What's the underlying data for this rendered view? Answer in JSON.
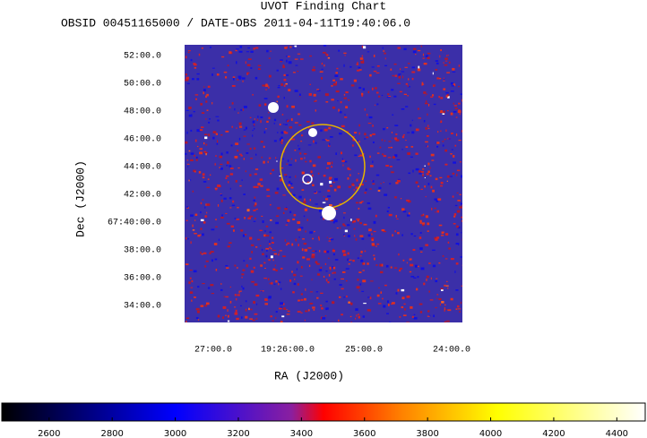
{
  "title": "UVOT Finding Chart",
  "subtitle": "OBSID 00451165000 / DATE-OBS 2011-04-11T19:40:06.0",
  "y_axis": {
    "label": "Dec (J2000)",
    "ticks": [
      "52:00.0",
      "50:00.0",
      "48:00.0",
      "46:00.0",
      "44:00.0",
      "42:00.0",
      "67:40:00.0",
      "38:00.0",
      "36:00.0",
      "34:00.0"
    ]
  },
  "x_axis": {
    "label": "RA (J2000)",
    "ticks": [
      "27:00.0",
      "19:26:00.0",
      "25:00.0",
      "24:00.0"
    ]
  },
  "colorbar": {
    "range": [
      2450,
      4490
    ],
    "ticks": [
      2600,
      2800,
      3000,
      3200,
      3400,
      3600,
      3800,
      4000,
      4200,
      4400
    ]
  }
}
